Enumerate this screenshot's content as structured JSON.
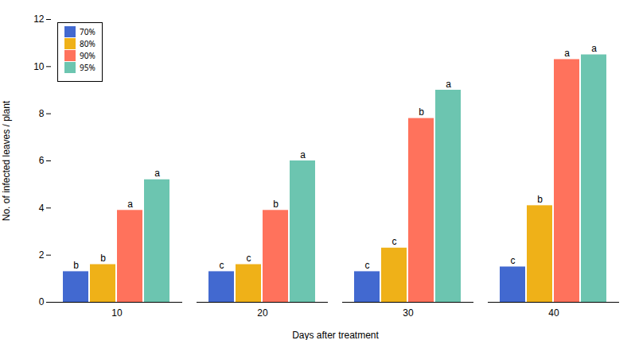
{
  "chart_data": {
    "type": "bar",
    "categories": [
      "10",
      "20",
      "30",
      "40"
    ],
    "series": [
      {
        "name": "70%",
        "values": [
          1.3,
          1.3,
          1.3,
          1.5
        ],
        "annotations": [
          "b",
          "c",
          "c",
          "c"
        ]
      },
      {
        "name": "80%",
        "values": [
          1.6,
          1.6,
          2.3,
          4.1
        ],
        "annotations": [
          "b",
          "c",
          "c",
          "b"
        ]
      },
      {
        "name": "90%",
        "values": [
          3.9,
          3.9,
          7.8,
          10.3
        ],
        "annotations": [
          "a",
          "b",
          "b",
          "a"
        ]
      },
      {
        "name": "95%",
        "values": [
          5.2,
          6.0,
          9.0,
          10.5
        ],
        "annotations": [
          "a",
          "a",
          "a",
          "a"
        ]
      }
    ],
    "xlabel": "Days after treatment",
    "ylabel": "No. of infected leaves / plant",
    "ylim": [
      0,
      12
    ],
    "yticks": [
      0,
      2,
      4,
      6,
      8,
      10,
      12
    ],
    "grid": false,
    "legend": "upper left"
  }
}
